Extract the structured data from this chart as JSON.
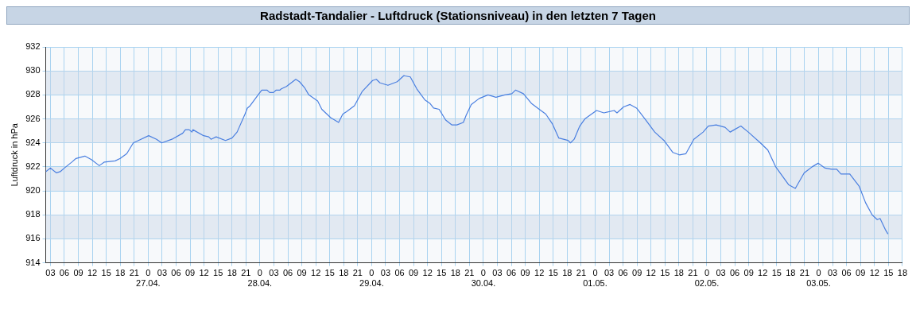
{
  "chart_data": {
    "type": "line",
    "title": "Radstadt-Tandalier - Luftdruck (Stationsniveau) in den letzten 7 Tagen",
    "ylabel": "Luftdruck in hPa",
    "grid": true,
    "marker": "none",
    "line_style": "solid",
    "legend": false,
    "xlim": [
      "--04-26T02:00",
      "--05-03T18:00"
    ],
    "xticks": [
      {
        "value": "--04-26T03:00",
        "label": "03"
      },
      {
        "value": "--04-26T06:00",
        "label": "06"
      },
      {
        "value": "--04-26T09:00",
        "label": "09"
      },
      {
        "value": "--04-26T12:00",
        "label": "12"
      },
      {
        "value": "--04-26T15:00",
        "label": "15"
      },
      {
        "value": "--04-26T18:00",
        "label": "18"
      },
      {
        "value": "--04-26T21:00",
        "label": "21"
      },
      {
        "value": "--04-27T00:00",
        "label": "0\n27.04."
      },
      {
        "value": "--04-27T03:00",
        "label": "03"
      },
      {
        "value": "--04-27T06:00",
        "label": "06"
      },
      {
        "value": "--04-27T09:00",
        "label": "09"
      },
      {
        "value": "--04-27T12:00",
        "label": "12"
      },
      {
        "value": "--04-27T15:00",
        "label": "15"
      },
      {
        "value": "--04-27T18:00",
        "label": "18"
      },
      {
        "value": "--04-27T21:00",
        "label": "21"
      },
      {
        "value": "--04-28T00:00",
        "label": "0\n28.04."
      },
      {
        "value": "--04-28T03:00",
        "label": "03"
      },
      {
        "value": "--04-28T06:00",
        "label": "06"
      },
      {
        "value": "--04-28T09:00",
        "label": "09"
      },
      {
        "value": "--04-28T12:00",
        "label": "12"
      },
      {
        "value": "--04-28T15:00",
        "label": "15"
      },
      {
        "value": "--04-28T18:00",
        "label": "18"
      },
      {
        "value": "--04-28T21:00",
        "label": "21"
      },
      {
        "value": "--04-29T00:00",
        "label": "0\n29.04."
      },
      {
        "value": "--04-29T03:00",
        "label": "03"
      },
      {
        "value": "--04-29T06:00",
        "label": "06"
      },
      {
        "value": "--04-29T09:00",
        "label": "09"
      },
      {
        "value": "--04-29T12:00",
        "label": "12"
      },
      {
        "value": "--04-29T15:00",
        "label": "15"
      },
      {
        "value": "--04-29T18:00",
        "label": "18"
      },
      {
        "value": "--04-29T21:00",
        "label": "21"
      },
      {
        "value": "--04-30T00:00",
        "label": "0\n30.04."
      },
      {
        "value": "--04-30T03:00",
        "label": "03"
      },
      {
        "value": "--04-30T06:00",
        "label": "06"
      },
      {
        "value": "--04-30T09:00",
        "label": "09"
      },
      {
        "value": "--04-30T12:00",
        "label": "12"
      },
      {
        "value": "--04-30T15:00",
        "label": "15"
      },
      {
        "value": "--04-30T18:00",
        "label": "18"
      },
      {
        "value": "--04-30T21:00",
        "label": "21"
      },
      {
        "value": "--05-01T00:00",
        "label": "0\n01.05."
      },
      {
        "value": "--05-01T03:00",
        "label": "03"
      },
      {
        "value": "--05-01T06:00",
        "label": "06"
      },
      {
        "value": "--05-01T09:00",
        "label": "09"
      },
      {
        "value": "--05-01T12:00",
        "label": "12"
      },
      {
        "value": "--05-01T15:00",
        "label": "15"
      },
      {
        "value": "--05-01T18:00",
        "label": "18"
      },
      {
        "value": "--05-01T21:00",
        "label": "21"
      },
      {
        "value": "--05-02T00:00",
        "label": "0\n02.05."
      },
      {
        "value": "--05-02T03:00",
        "label": "03"
      },
      {
        "value": "--05-02T06:00",
        "label": "06"
      },
      {
        "value": "--05-02T09:00",
        "label": "09"
      },
      {
        "value": "--05-02T12:00",
        "label": "12"
      },
      {
        "value": "--05-02T15:00",
        "label": "15"
      },
      {
        "value": "--05-02T18:00",
        "label": "18"
      },
      {
        "value": "--05-02T21:00",
        "label": "21"
      },
      {
        "value": "--05-03T00:00",
        "label": "0\n03.05."
      },
      {
        "value": "--05-03T03:00",
        "label": "03"
      },
      {
        "value": "--05-03T06:00",
        "label": "06"
      },
      {
        "value": "--05-03T09:00",
        "label": "09"
      },
      {
        "value": "--05-03T12:00",
        "label": "12"
      },
      {
        "value": "--05-03T15:00",
        "label": "15"
      },
      {
        "value": "--05-03T18:00",
        "label": "18"
      }
    ],
    "ylim": [
      914,
      932
    ],
    "yticks": [
      914,
      916,
      918,
      920,
      922,
      924,
      926,
      928,
      930,
      932
    ],
    "series": [
      {
        "color": "#4a7fe0",
        "x": [
          "--04-26T02:00",
          "--04-26T03:00",
          "--04-26T04:18",
          "--04-26T05:06",
          "--04-26T06:00",
          "--04-26T07:36",
          "--04-26T08:30",
          "--04-26T10:24",
          "--04-26T11:48",
          "--04-26T13:30",
          "--04-26T14:36",
          "--04-26T16:54",
          "--04-26T18:00",
          "--04-26T19:24",
          "--04-26T20:48",
          "--04-26T21:54",
          "--04-27T00:06",
          "--04-27T01:48",
          "--04-27T02:54",
          "--04-27T05:06",
          "--04-27T07:24",
          "--04-27T08:00",
          "--04-27T08:48",
          "--04-27T09:24",
          "--04-27T09:36",
          "--04-27T11:54",
          "--04-27T13:00",
          "--04-27T13:30",
          "--04-27T14:36",
          "--04-27T16:36",
          "--04-27T18:00",
          "--04-27T19:06",
          "--04-27T20:48",
          "--04-27T21:18",
          "--04-27T21:54",
          "--04-27T23:48",
          "--04-28T00:24",
          "--04-28T01:30",
          "--04-28T02:06",
          "--04-28T02:54",
          "--04-28T03:30",
          "--04-28T04:18",
          "--04-28T04:36",
          "--04-28T05:42",
          "--04-28T07:42",
          "--04-28T08:30",
          "--04-28T09:36",
          "--04-28T10:30",
          "--04-28T12:24",
          "--04-28T13:18",
          "--04-28T15:12",
          "--04-28T16:54",
          "--04-28T17:48",
          "--04-28T18:36",
          "--04-28T20:18",
          "--04-28T22:00",
          "--04-29T00:12",
          "--04-29T01:00",
          "--04-29T01:48",
          "--04-29T03:30",
          "--04-29T05:30",
          "--04-29T06:54",
          "--04-29T08:18",
          "--04-29T09:42",
          "--04-29T11:24",
          "--04-29T12:30",
          "--04-29T13:18",
          "--04-29T14:30",
          "--04-29T15:54",
          "--04-29T17:12",
          "--04-29T18:18",
          "--04-29T19:42",
          "--04-29T20:18",
          "--04-29T21:24",
          "--04-29T23:06",
          "--04-30T01:00",
          "--04-30T02:42",
          "--04-30T04:36",
          "--04-30T06:06",
          "--04-30T06:54",
          "--04-30T08:36",
          "--04-30T10:18",
          "--04-30T12:00",
          "--04-30T13:24",
          "--04-30T14:48",
          "--04-30T16:12",
          "--04-30T18:12",
          "--04-30T18:42",
          "--04-30T19:30",
          "--04-30T20:42",
          "--04-30T21:48",
          "--05-01T00:18",
          "--05-01T01:54",
          "--05-01T04:06",
          "--05-01T04:42",
          "--05-01T06:06",
          "--05-01T07:30",
          "--05-01T08:54",
          "--05-01T10:54",
          "--05-01T12:48",
          "--05-01T14:48",
          "--05-01T16:42",
          "--05-01T18:06",
          "--05-01T19:30",
          "--05-01T21:12",
          "--05-01T23:12",
          "--05-02T00:18",
          "--05-02T02:00",
          "--05-02T03:54",
          "--05-02T05:00",
          "--05-02T05:54",
          "--05-02T07:18",
          "--05-02T08:54",
          "--05-02T11:30",
          "--05-02T13:06",
          "--05-02T14:48",
          "--05-02T15:54",
          "--05-02T17:36",
          "--05-02T19:00",
          "--05-02T20:54",
          "--05-02T22:36",
          "--05-02T23:54",
          "--05-03T01:24",
          "--05-03T02:48",
          "--05-03T03:54",
          "--05-03T04:48",
          "--05-03T06:42",
          "--05-03T08:42",
          "--05-03T10:06",
          "--05-03T11:30",
          "--05-03T12:36",
          "--05-03T13:12",
          "--05-03T14:18",
          "--05-03T14:54"
        ],
        "values": [
          921.6,
          921.9,
          921.5,
          921.6,
          921.9,
          922.4,
          922.7,
          922.9,
          922.6,
          922.1,
          922.4,
          922.5,
          922.7,
          923.1,
          924.0,
          924.2,
          924.6,
          924.3,
          924.0,
          924.3,
          924.8,
          925.1,
          925.1,
          924.9,
          925.1,
          924.6,
          924.5,
          924.3,
          924.5,
          924.2,
          924.4,
          924.9,
          926.4,
          926.9,
          927.1,
          928.1,
          928.4,
          928.4,
          928.2,
          928.2,
          928.4,
          928.4,
          928.5,
          928.7,
          929.3,
          929.1,
          928.6,
          928.0,
          927.5,
          926.8,
          926.1,
          925.7,
          926.4,
          926.6,
          927.1,
          928.3,
          929.2,
          929.3,
          929.0,
          928.8,
          929.1,
          929.6,
          929.5,
          928.5,
          927.6,
          927.3,
          926.9,
          926.8,
          925.9,
          925.5,
          925.5,
          925.7,
          926.3,
          927.2,
          927.7,
          928.0,
          927.8,
          928.0,
          928.1,
          928.4,
          928.1,
          927.3,
          926.8,
          926.4,
          925.6,
          924.4,
          924.2,
          924.0,
          924.3,
          925.4,
          926.0,
          926.7,
          926.5,
          926.7,
          926.5,
          927.0,
          927.2,
          926.9,
          925.9,
          924.9,
          924.2,
          923.2,
          923.0,
          923.1,
          924.3,
          924.9,
          925.4,
          925.5,
          925.3,
          924.9,
          925.1,
          925.4,
          924.9,
          924.0,
          923.4,
          922.0,
          921.4,
          920.5,
          920.2,
          921.5,
          922.0,
          922.3,
          921.9,
          921.8,
          921.8,
          921.4,
          921.4,
          920.4,
          919.0,
          918.0,
          917.6,
          917.7,
          916.8,
          916.4
        ]
      }
    ]
  }
}
